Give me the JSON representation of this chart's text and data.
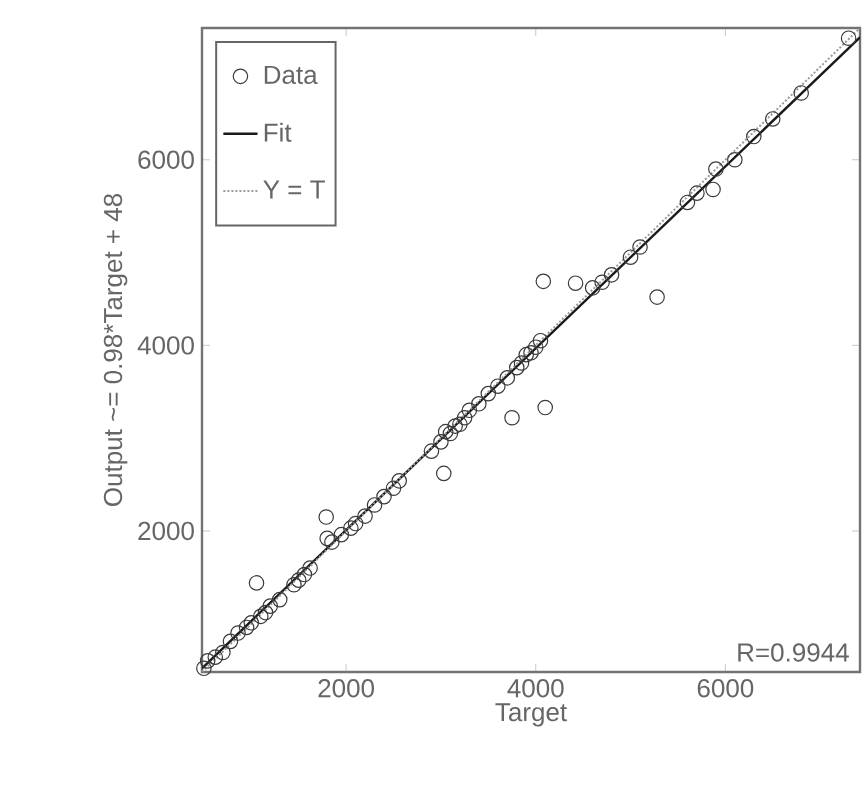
{
  "chart_data": {
    "type": "scatter",
    "xlabel": "Target",
    "ylabel": "Output ~= 0.98*Target + 48",
    "xlim": [
      480,
      7420
    ],
    "ylim": [
      480,
      7420
    ],
    "xticks": [
      2000,
      4000,
      6000
    ],
    "yticks": [
      2000,
      4000,
      6000
    ],
    "grid": false,
    "legend": "top left",
    "marker": "circle",
    "annotations": [
      "R=0.9944"
    ],
    "series": [
      {
        "name": "Data",
        "color": "#3a3a3a",
        "x": [
          500,
          540,
          620,
          700,
          780,
          860,
          950,
          1000,
          1055,
          1100,
          1150,
          1200,
          1300,
          1450,
          1500,
          1560,
          1620,
          1790,
          1800,
          1850,
          1950,
          2050,
          2100,
          2200,
          2300,
          2400,
          2500,
          2560,
          2900,
          3000,
          3030,
          3050,
          3100,
          3150,
          3200,
          3250,
          3300,
          3400,
          3500,
          3600,
          3700,
          3750,
          3800,
          3850,
          3900,
          3950,
          4000,
          4050,
          4080,
          4100,
          4420,
          4600,
          4700,
          4800,
          5000,
          5100,
          5280,
          5600,
          5700,
          5870,
          5900,
          6100,
          6300,
          6500,
          6800,
          7300
        ],
        "values": [
          520,
          600,
          640,
          690,
          810,
          900,
          960,
          1010,
          1440,
          1080,
          1120,
          1190,
          1260,
          1420,
          1470,
          1530,
          1600,
          2150,
          1920,
          1880,
          1960,
          2030,
          2080,
          2160,
          2280,
          2370,
          2460,
          2540,
          2860,
          2960,
          2620,
          3070,
          3050,
          3130,
          3150,
          3220,
          3300,
          3370,
          3480,
          3560,
          3650,
          3220,
          3760,
          3810,
          3900,
          3920,
          3980,
          4050,
          4690,
          3330,
          4670,
          4620,
          4680,
          4760,
          4950,
          5060,
          4520,
          5540,
          5640,
          5680,
          5900,
          6000,
          6250,
          6440,
          6720,
          7310
        ]
      },
      {
        "name": "Fit",
        "type": "line",
        "color": "#1a1a1a",
        "line_style": "solid",
        "marker": "none",
        "x": [
          480,
          7420
        ],
        "values": [
          520,
          7320
        ]
      },
      {
        "name": "Y = T",
        "type": "line",
        "color": "#9a9a9a",
        "line_style": "dotted",
        "marker": "none",
        "x": [
          480,
          7420
        ],
        "values": [
          480,
          7420
        ]
      }
    ]
  }
}
